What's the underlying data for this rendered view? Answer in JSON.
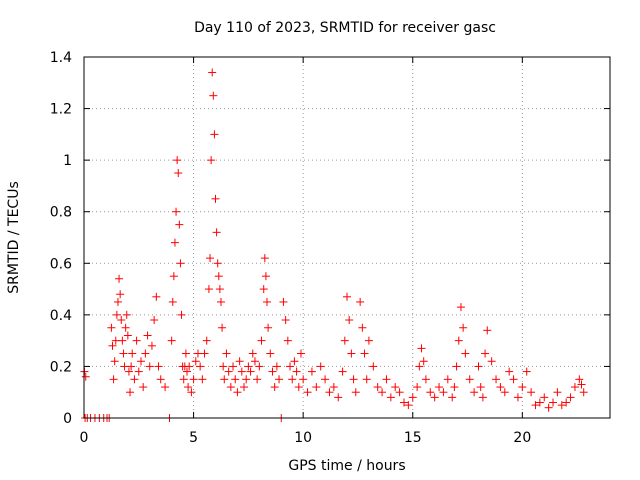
{
  "chart_data": {
    "type": "scatter",
    "title": "Day 110 of 2023, SRMTID for receiver gasc",
    "xlabel": "GPS time / hours",
    "ylabel": "SRMTID / TECUs",
    "xlim": [
      0,
      24
    ],
    "ylim": [
      0,
      1.4
    ],
    "xticks": [
      0,
      5,
      10,
      15,
      20
    ],
    "xtick_labels": [
      "0",
      "5",
      "10",
      "15",
      "20"
    ],
    "yticks": [
      0,
      0.2,
      0.4,
      0.6,
      0.8,
      1.0,
      1.2,
      1.4
    ],
    "ytick_labels": [
      "0",
      "0.2",
      "0.4",
      "0.6",
      "0.8",
      "1",
      "1.2",
      "1.4"
    ],
    "grid": true,
    "marker": "+",
    "color": "#ff0000",
    "series": [
      {
        "name": "SRMTID",
        "x": [
          0.02,
          0.05,
          0.08,
          0.15,
          0.3,
          0.5,
          0.7,
          0.9,
          1.05,
          1.15,
          1.25,
          1.3,
          1.35,
          1.4,
          1.45,
          1.5,
          1.55,
          1.6,
          1.65,
          1.7,
          1.75,
          1.8,
          1.85,
          1.9,
          1.95,
          2.0,
          2.05,
          2.1,
          2.15,
          2.2,
          2.3,
          2.4,
          2.5,
          2.6,
          2.7,
          2.8,
          2.9,
          3.0,
          3.1,
          3.2,
          3.3,
          3.4,
          3.5,
          3.7,
          3.9,
          4.0,
          4.05,
          4.1,
          4.15,
          4.2,
          4.25,
          4.3,
          4.35,
          4.4,
          4.45,
          4.5,
          4.55,
          4.6,
          4.65,
          4.7,
          4.75,
          4.8,
          4.9,
          5.0,
          5.1,
          5.2,
          5.3,
          5.4,
          5.5,
          5.6,
          5.7,
          5.75,
          5.8,
          5.85,
          5.9,
          5.95,
          6.0,
          6.05,
          6.1,
          6.15,
          6.2,
          6.25,
          6.3,
          6.35,
          6.4,
          6.5,
          6.6,
          6.7,
          6.8,
          6.9,
          7.0,
          7.1,
          7.2,
          7.3,
          7.4,
          7.5,
          7.6,
          7.7,
          7.8,
          7.9,
          8.0,
          8.1,
          8.2,
          8.25,
          8.3,
          8.35,
          8.4,
          8.5,
          8.6,
          8.7,
          8.8,
          8.9,
          9.0,
          9.1,
          9.2,
          9.3,
          9.4,
          9.5,
          9.6,
          9.7,
          9.8,
          9.9,
          10.0,
          10.2,
          10.4,
          10.6,
          10.8,
          11.0,
          11.2,
          11.4,
          11.6,
          11.8,
          11.9,
          12.0,
          12.1,
          12.2,
          12.3,
          12.4,
          12.6,
          12.7,
          12.8,
          12.9,
          13.0,
          13.2,
          13.4,
          13.6,
          13.8,
          14.0,
          14.2,
          14.4,
          14.6,
          14.8,
          15.0,
          15.2,
          15.3,
          15.4,
          15.5,
          15.6,
          15.8,
          16.0,
          16.2,
          16.4,
          16.6,
          16.8,
          16.9,
          17.0,
          17.1,
          17.2,
          17.3,
          17.4,
          17.6,
          17.8,
          18.0,
          18.1,
          18.2,
          18.3,
          18.4,
          18.6,
          18.8,
          19.0,
          19.2,
          19.4,
          19.6,
          19.8,
          20.0,
          20.2,
          20.4,
          20.6,
          20.8,
          21.0,
          21.2,
          21.4,
          21.6,
          21.8,
          22.0,
          22.2,
          22.4,
          22.6,
          22.7,
          22.8
        ],
        "y": [
          0.18,
          0.0,
          0.16,
          0.0,
          0.0,
          0.0,
          0.0,
          0.0,
          0.0,
          0.0,
          0.35,
          0.28,
          0.15,
          0.22,
          0.3,
          0.4,
          0.45,
          0.54,
          0.48,
          0.38,
          0.3,
          0.25,
          0.2,
          0.35,
          0.4,
          0.32,
          0.18,
          0.1,
          0.2,
          0.25,
          0.15,
          0.3,
          0.18,
          0.22,
          0.12,
          0.25,
          0.32,
          0.2,
          0.28,
          0.38,
          0.47,
          0.2,
          0.15,
          0.12,
          0.0,
          0.3,
          0.45,
          0.55,
          0.68,
          0.8,
          1.0,
          0.95,
          0.75,
          0.6,
          0.4,
          0.2,
          0.15,
          0.2,
          0.25,
          0.18,
          0.12,
          0.2,
          0.1,
          0.15,
          0.22,
          0.25,
          0.2,
          0.15,
          0.25,
          0.3,
          0.5,
          0.62,
          1.0,
          1.34,
          1.25,
          1.1,
          0.85,
          0.72,
          0.6,
          0.55,
          0.5,
          0.45,
          0.35,
          0.2,
          0.15,
          0.25,
          0.18,
          0.12,
          0.2,
          0.15,
          0.1,
          0.22,
          0.18,
          0.12,
          0.15,
          0.2,
          0.18,
          0.25,
          0.22,
          0.15,
          0.2,
          0.3,
          0.5,
          0.62,
          0.55,
          0.45,
          0.35,
          0.25,
          0.18,
          0.12,
          0.2,
          0.15,
          0.0,
          0.45,
          0.38,
          0.3,
          0.2,
          0.15,
          0.22,
          0.18,
          0.12,
          0.25,
          0.15,
          0.1,
          0.18,
          0.12,
          0.2,
          0.15,
          0.1,
          0.12,
          0.08,
          0.18,
          0.3,
          0.47,
          0.38,
          0.25,
          0.15,
          0.1,
          0.45,
          0.35,
          0.25,
          0.15,
          0.3,
          0.2,
          0.12,
          0.1,
          0.15,
          0.08,
          0.12,
          0.1,
          0.06,
          0.05,
          0.08,
          0.12,
          0.2,
          0.27,
          0.22,
          0.15,
          0.1,
          0.08,
          0.12,
          0.1,
          0.15,
          0.08,
          0.12,
          0.2,
          0.3,
          0.43,
          0.35,
          0.25,
          0.15,
          0.1,
          0.2,
          0.12,
          0.08,
          0.25,
          0.34,
          0.22,
          0.15,
          0.12,
          0.1,
          0.18,
          0.15,
          0.08,
          0.12,
          0.18,
          0.1,
          0.05,
          0.06,
          0.08,
          0.04,
          0.06,
          0.1,
          0.05,
          0.06,
          0.08,
          0.12,
          0.15,
          0.13,
          0.1
        ]
      }
    ]
  }
}
